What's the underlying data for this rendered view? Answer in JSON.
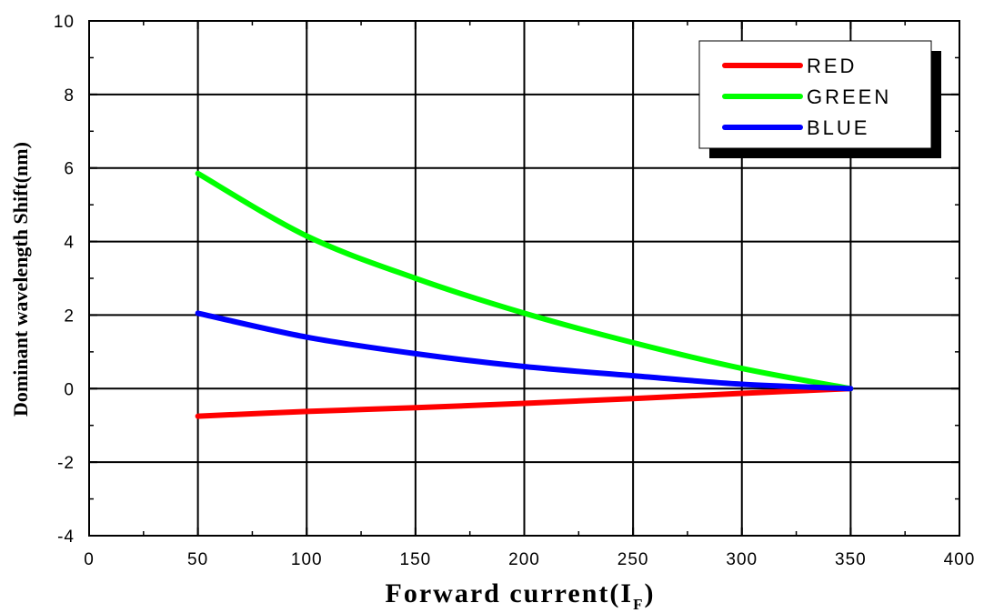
{
  "chart_data": {
    "type": "line",
    "xlabel": "Forward current(I",
    "xlabel_subscript": "F",
    "xlabel_close": ")",
    "ylabel": "Dominant wavelength Shift(nm)",
    "xlim": [
      0,
      400
    ],
    "ylim": [
      -4,
      10
    ],
    "xticks": [
      0,
      50,
      100,
      150,
      200,
      250,
      300,
      350,
      400
    ],
    "yticks": [
      -4,
      -2,
      0,
      2,
      4,
      6,
      8,
      10
    ],
    "grid": true,
    "legend_position": "top-right",
    "x": [
      50,
      100,
      150,
      200,
      250,
      300,
      350
    ],
    "series": [
      {
        "name": "RED",
        "color": "#ff0000",
        "values": [
          -0.75,
          -0.62,
          -0.52,
          -0.4,
          -0.27,
          -0.13,
          0
        ]
      },
      {
        "name": "GREEN",
        "color": "#00ff00",
        "values": [
          5.85,
          4.15,
          3.0,
          2.05,
          1.25,
          0.55,
          0
        ]
      },
      {
        "name": "BLUE",
        "color": "#0000ff",
        "values": [
          2.05,
          1.4,
          0.95,
          0.6,
          0.35,
          0.12,
          0
        ]
      }
    ]
  }
}
